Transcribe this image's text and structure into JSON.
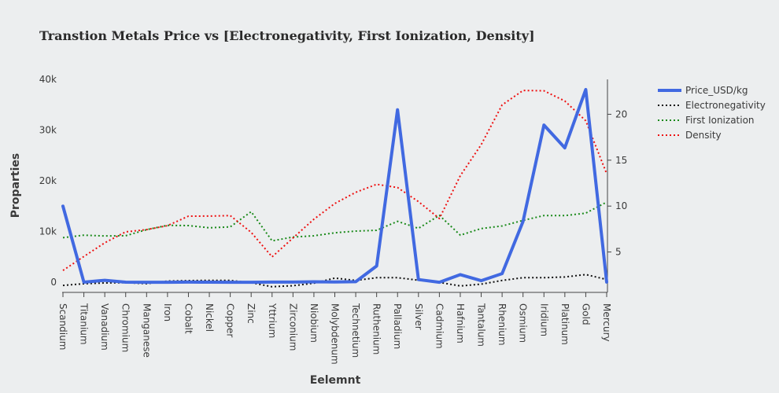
{
  "chart_data": {
    "type": "line",
    "title": "Transtion Metals Price vs [Electronegativity, First Ionization, Density]",
    "xlabel": "Eelemnt",
    "ylabel": "Proparties",
    "categories": [
      "Scandium",
      "Titanium",
      "Vanadium",
      "Chromium",
      "Manganese",
      "Iron",
      "Cobalt",
      "Nickel",
      "Copper",
      "Zinc",
      "Yttrium",
      "Zirconium",
      "Niobium",
      "Molybdenum",
      "Technetium",
      "Ruthenium",
      "Palladium",
      "Silver",
      "Cadmium",
      "Hafnium",
      "Tantalum",
      "Rhenium",
      "Osmium",
      "Iridium",
      "Platinum",
      "Gold",
      "Mercury"
    ],
    "ylim": [
      -2000,
      40000
    ],
    "y_ticks": [
      0,
      10000,
      20000,
      30000,
      40000
    ],
    "y_tick_labels": [
      "0",
      "10k",
      "20k",
      "30k",
      "40k"
    ],
    "y2lim": [
      0.6,
      23.8
    ],
    "y2_ticks": [
      5,
      10,
      15,
      20
    ],
    "y2_tick_labels": [
      "5",
      "10",
      "15",
      "20"
    ],
    "legend_position": "top-right",
    "series": [
      {
        "name": "Price_USD/kg",
        "axis": "left",
        "color": "#4169e1",
        "dash": "solid",
        "values": [
          15000,
          10,
          380,
          10,
          2,
          0.4,
          35,
          16,
          6,
          3,
          35,
          36,
          85,
          40,
          100,
          3200,
          34000,
          520,
          3,
          1500,
          310,
          1700,
          12000,
          31000,
          26500,
          38000,
          30
        ]
      },
      {
        "name": "Electronegativity",
        "axis": "right",
        "color": "#111111",
        "dash": "dot",
        "values": [
          1.36,
          1.54,
          1.63,
          1.66,
          1.55,
          1.83,
          1.88,
          1.91,
          1.9,
          1.65,
          1.22,
          1.33,
          1.6,
          2.16,
          1.9,
          2.2,
          2.2,
          1.93,
          1.69,
          1.3,
          1.5,
          1.9,
          2.2,
          2.2,
          2.28,
          2.54,
          2.0
        ]
      },
      {
        "name": "First Ionization",
        "axis": "right",
        "color": "#1a8a1a",
        "dash": "dot",
        "values": [
          6.56,
          6.83,
          6.75,
          6.77,
          7.43,
          7.9,
          7.88,
          7.64,
          7.73,
          9.39,
          6.22,
          6.63,
          6.76,
          7.09,
          7.28,
          7.36,
          8.34,
          7.58,
          8.99,
          6.83,
          7.55,
          7.83,
          8.44,
          8.97,
          8.96,
          9.23,
          10.44
        ]
      },
      {
        "name": "Density",
        "axis": "right",
        "color": "#ee1111",
        "dash": "dot",
        "values": [
          2.99,
          4.51,
          6.0,
          7.19,
          7.44,
          7.87,
          8.9,
          8.91,
          8.96,
          7.14,
          4.47,
          6.52,
          8.57,
          10.28,
          11.5,
          12.37,
          12.02,
          10.49,
          8.65,
          13.31,
          16.69,
          21.02,
          22.59,
          22.56,
          21.45,
          19.3,
          13.53
        ]
      }
    ]
  }
}
